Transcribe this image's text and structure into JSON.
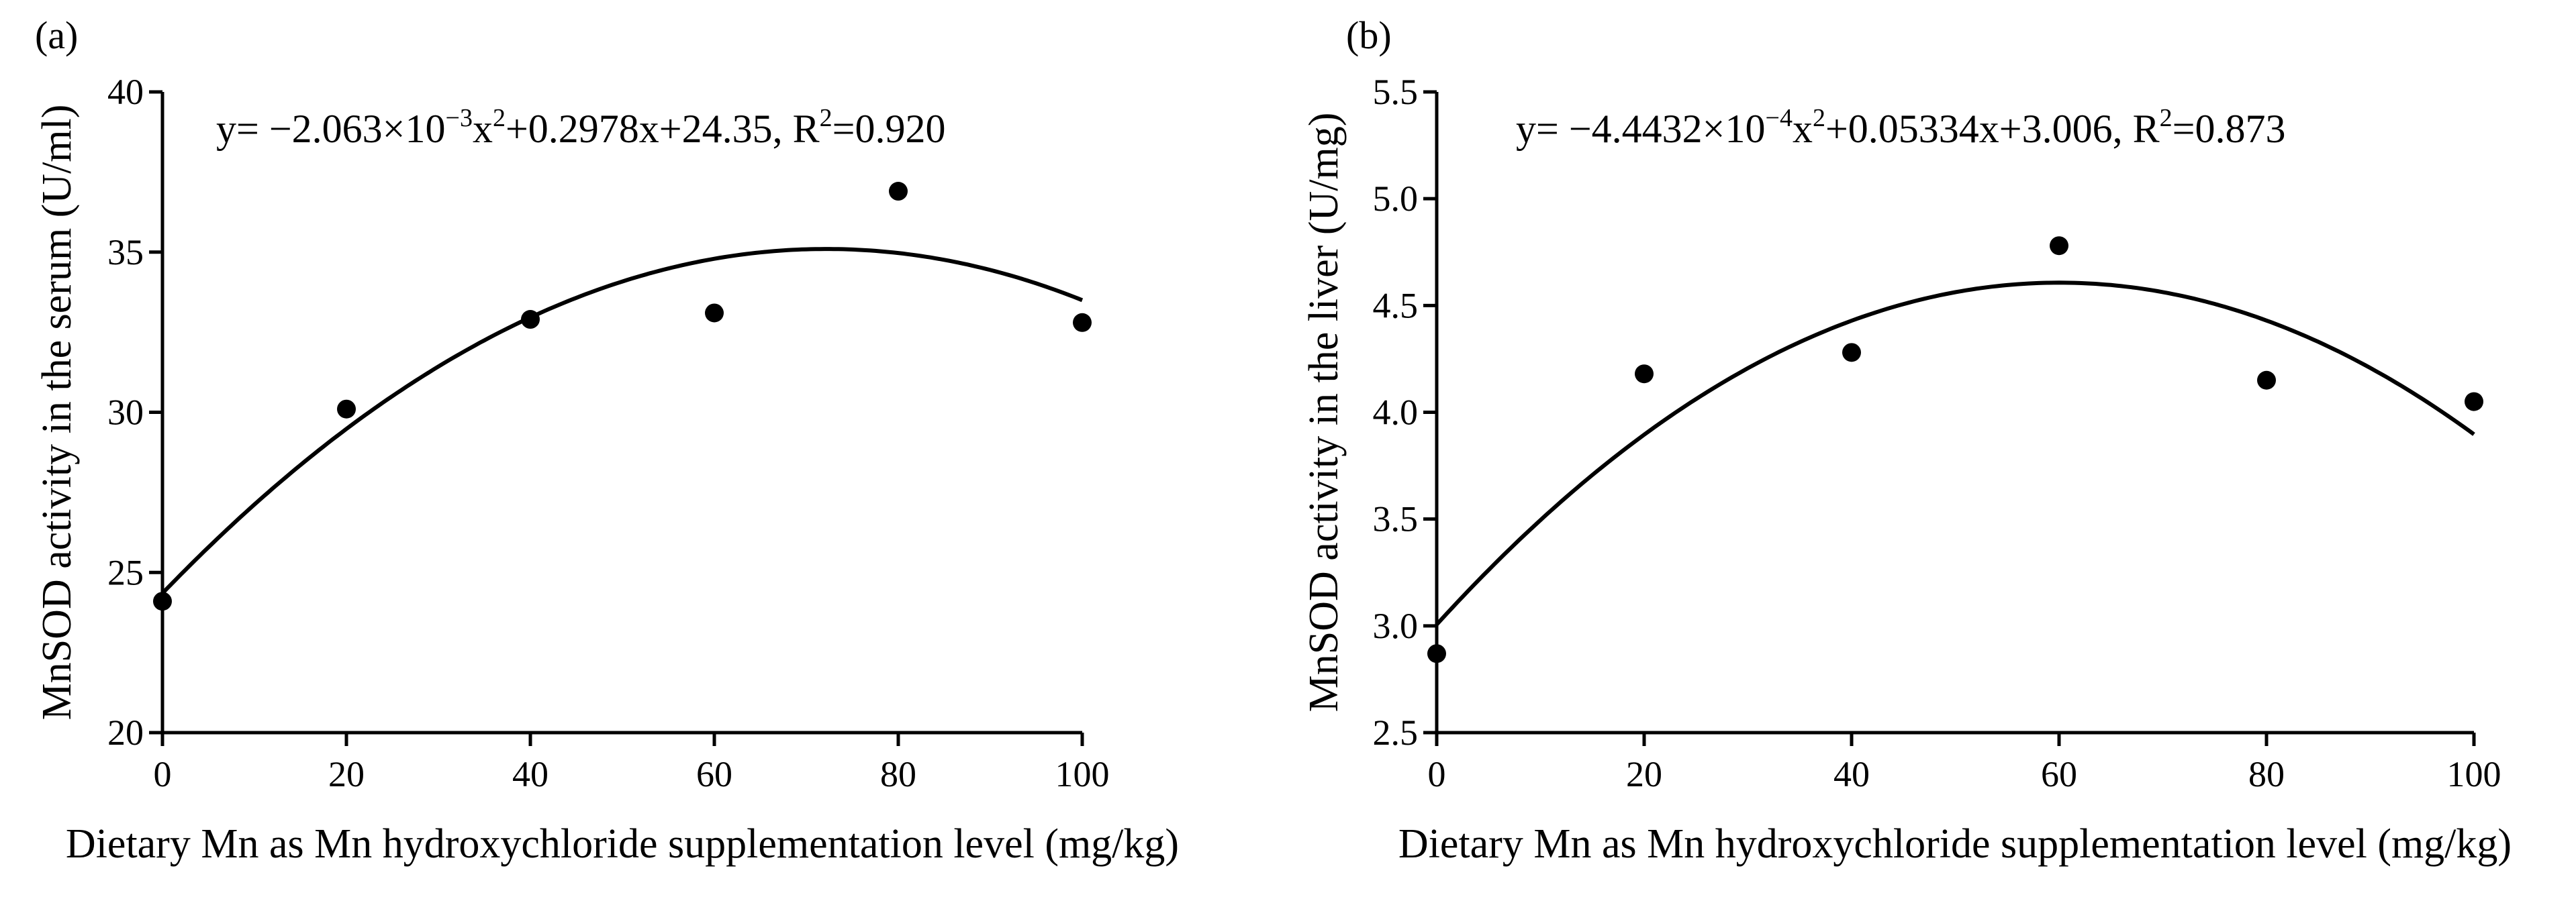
{
  "chart_data": [
    {
      "type": "scatter",
      "panel": "(a)",
      "xlabel": "Dietary Mn as Mn hydroxychloride supplementation level (mg/kg)",
      "ylabel": "MnSOD activity in the serum (U/ml)",
      "xlim": [
        0,
        100
      ],
      "ylim": [
        20,
        40
      ],
      "xticks": [
        0,
        20,
        40,
        60,
        80,
        100
      ],
      "yticks": [
        20,
        25,
        30,
        35,
        40
      ],
      "ytick_labels": [
        "20",
        "25",
        "30",
        "35",
        "40"
      ],
      "x": [
        0,
        20,
        40,
        60,
        80,
        100
      ],
      "y": [
        24.1,
        30.1,
        32.9,
        33.1,
        36.9,
        32.8
      ],
      "fit": {
        "type": "quadratic",
        "coefficients": [
          -0.002063,
          0.2978,
          24.35
        ],
        "equation": {
          "prefix": "y= −2.063×10",
          "exp1": "−3",
          "mid": "x",
          "exp2": "2",
          "tail": "+0.2978x+24.35, R",
          "exp3": "2",
          "end": "=0.920"
        }
      }
    },
    {
      "type": "scatter",
      "panel": "(b)",
      "xlabel": "Dietary Mn as Mn hydroxychloride supplementation level (mg/kg)",
      "ylabel": "MnSOD activity in the liver (U/mg)",
      "xlim": [
        0,
        100
      ],
      "ylim": [
        2.5,
        5.5
      ],
      "xticks": [
        0,
        20,
        40,
        60,
        80,
        100
      ],
      "yticks": [
        2.5,
        3.0,
        3.5,
        4.0,
        4.5,
        5.0,
        5.5
      ],
      "ytick_labels": [
        "2.5",
        "3.0",
        "3.5",
        "4.0",
        "4.5",
        "5.0",
        "5.5"
      ],
      "x": [
        0,
        20,
        40,
        60,
        80,
        100
      ],
      "y": [
        2.87,
        4.18,
        4.28,
        4.78,
        4.15,
        4.05
      ],
      "fit": {
        "type": "quadratic",
        "coefficients": [
          -0.00044432,
          0.05334,
          3.006
        ],
        "equation": {
          "prefix": "y= −4.4432×10",
          "exp1": "−4",
          "mid": "x",
          "exp2": "2",
          "tail": "+0.05334x+3.006, R",
          "exp3": "2",
          "end": "=0.873"
        }
      }
    }
  ]
}
